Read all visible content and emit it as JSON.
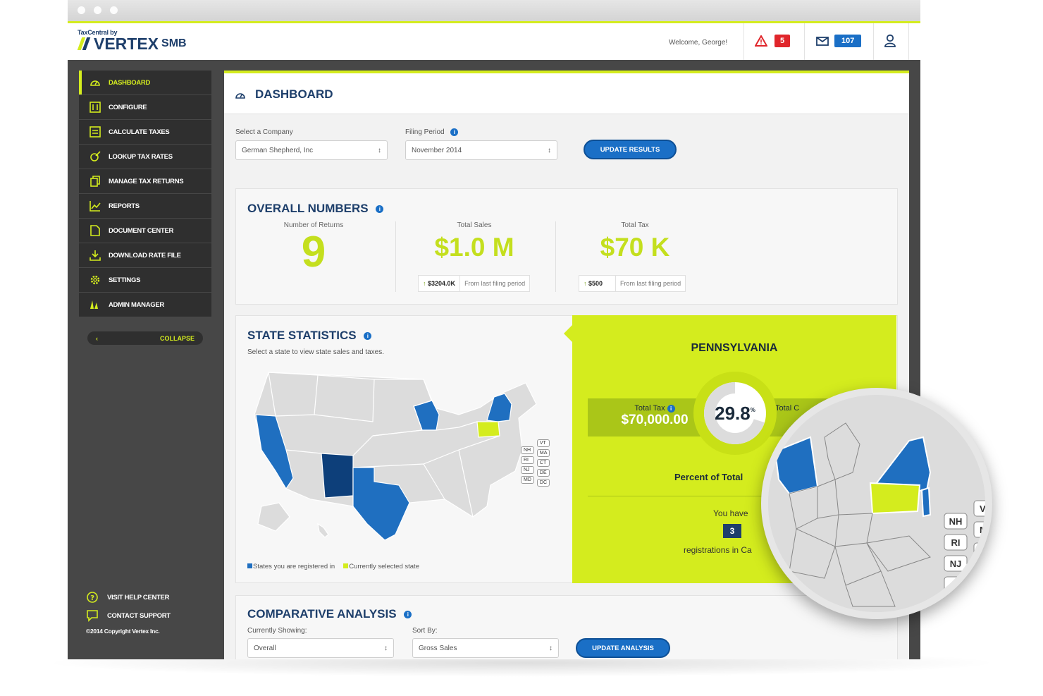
{
  "app": {
    "logo_small": "TaxCentral by",
    "logo_main": "VERTEX",
    "logo_suffix": "SMB",
    "welcome": "Welcome, George!",
    "alerts_count": "5",
    "messages_count": "107",
    "colors": {
      "accent": "#d4ec1e",
      "brand": "#1e3f6b",
      "primary_button": "#1a6fc6",
      "alert": "#e0262b"
    }
  },
  "sidebar": {
    "items": [
      {
        "label": "DASHBOARD",
        "icon": "dashboard-icon",
        "active": true
      },
      {
        "label": "CONFIGURE",
        "icon": "configure-icon"
      },
      {
        "label": "CALCULATE TAXES",
        "icon": "calculator-icon"
      },
      {
        "label": "LOOKUP TAX RATES",
        "icon": "lookup-icon"
      },
      {
        "label": "MANAGE TAX RETURNS",
        "icon": "documents-icon"
      },
      {
        "label": "REPORTS",
        "icon": "chart-icon"
      },
      {
        "label": "DOCUMENT CENTER",
        "icon": "document-icon"
      },
      {
        "label": "DOWNLOAD RATE FILE",
        "icon": "download-icon"
      },
      {
        "label": "SETTINGS",
        "icon": "gear-icon"
      },
      {
        "label": "ADMIN MANAGER",
        "icon": "admin-icon"
      }
    ],
    "collapse_label": "COLLAPSE",
    "footer": {
      "help": "VISIT HELP CENTER",
      "support": "CONTACT SUPPORT",
      "copyright": "©2014 Copyright Vertex Inc."
    }
  },
  "dashboard": {
    "title": "DASHBOARD",
    "company_label": "Select a Company",
    "company_value": "German Shepherd, Inc",
    "period_label": "Filing Period",
    "period_value": "November 2014",
    "update_button": "UPDATE RESULTS"
  },
  "overall": {
    "title": "OVERALL NUMBERS",
    "returns_label": "Number of Returns",
    "returns_value": "9",
    "sales_label": "Total Sales",
    "sales_value": "$1.0 M",
    "sales_delta": "$3204.0K",
    "sales_delta_note": "From last filing period",
    "tax_label": "Total Tax",
    "tax_value": "$70 K",
    "tax_delta": "$500",
    "tax_delta_note": "From last filing period"
  },
  "state_stats": {
    "title": "STATE STATISTICS",
    "subtitle": "Select a state to view state sales and taxes.",
    "small_states": [
      "VT",
      "NH",
      "MA",
      "RI",
      "CT",
      "NJ",
      "DE",
      "MD",
      "DC"
    ],
    "legend_registered": "States you are registered in",
    "legend_selected": "Currently selected state",
    "selected_state": "PENNSYLVANIA",
    "total_tax_label": "Total Tax",
    "total_tax_value": "$70,000.00",
    "total_other_label": "Total C",
    "percent_value": "29.8",
    "percent_suffix": "%",
    "percent_label": "Percent of Total",
    "you_have": "You have",
    "registrations_count": "3",
    "registrations_text": "registrations in Ca"
  },
  "magnifier": {
    "labels": [
      "NH",
      "RI",
      "NJ",
      "M",
      "V",
      "M",
      "M"
    ]
  },
  "comparative": {
    "title": "COMPARATIVE ANALYSIS",
    "showing_label": "Currently Showing:",
    "showing_value": "Overall",
    "sort_label": "Sort By:",
    "sort_value": "Gross Sales",
    "update_button": "UPDATE ANALYSIS"
  }
}
